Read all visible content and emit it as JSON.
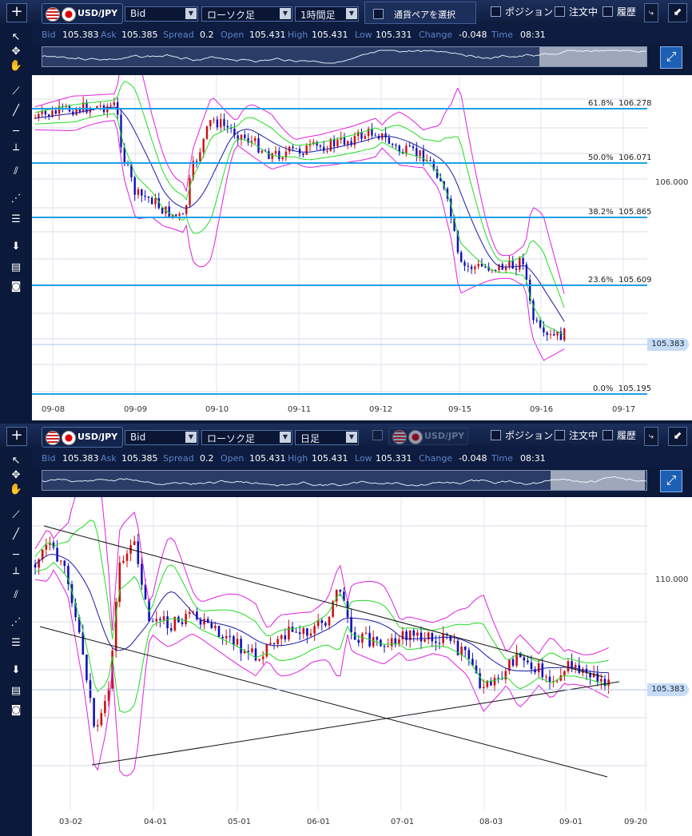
{
  "top": {
    "pair": "USD/JPY",
    "price_type": "Bid",
    "chart_type": "ローソク足",
    "timeframe": "1時間足",
    "pair_select_label": "通貨ペアを選択",
    "checks": {
      "position": "ポジション",
      "orders": "注文中",
      "history": "履歴"
    },
    "info": {
      "bid_l": "Bid",
      "bid": "105.383",
      "ask_l": "Ask",
      "ask": "105.385",
      "spread_l": "Spread",
      "spread": "0.2",
      "open_l": "Open",
      "open": "105.431",
      "high_l": "High",
      "high": "105.431",
      "low_l": "Low",
      "low": "105.331",
      "change_l": "Change",
      "change": "-0.048",
      "time_l": "Time",
      "time": "08:31"
    },
    "y_ticks": [
      "106.000"
    ],
    "current_price": "105.383",
    "fib": [
      {
        "label": "61.8%",
        "value": "106.278"
      },
      {
        "label": "50.0%",
        "value": "106.071"
      },
      {
        "label": "38.2%",
        "value": "105.865"
      },
      {
        "label": "23.6%",
        "value": "105.609"
      },
      {
        "label": "0.0%",
        "value": "105.195"
      }
    ],
    "x_ticks": [
      "09-08",
      "09-09",
      "09-10",
      "09-11",
      "09-12",
      "09-15",
      "09-16",
      "09-17"
    ]
  },
  "bottom": {
    "pair": "USD/JPY",
    "pair_disabled": "USD/JPY",
    "price_type": "Bid",
    "chart_type": "ローソク足",
    "timeframe": "日足",
    "checks": {
      "position": "ポジション",
      "orders": "注文中",
      "history": "履歴"
    },
    "info": {
      "bid_l": "Bid",
      "bid": "105.383",
      "ask_l": "Ask",
      "ask": "105.385",
      "spread_l": "Spread",
      "spread": "0.2",
      "open_l": "Open",
      "open": "105.431",
      "high_l": "High",
      "high": "105.431",
      "low_l": "Low",
      "low": "105.331",
      "change_l": "Change",
      "change": "-0.048",
      "time_l": "Time",
      "time": "08:31"
    },
    "y_ticks": [
      "110.000"
    ],
    "current_price": "105.383",
    "x_ticks": [
      "03-02",
      "04-01",
      "05-01",
      "06-01",
      "07-01",
      "08-03",
      "09-01",
      "09-20"
    ]
  },
  "icons": {
    "add": "plus-icon",
    "detach": "detach-icon",
    "shrink": "shrink-icon",
    "navigator": "zoom-navigator-icon"
  },
  "colors": {
    "bull": "#cc1111",
    "bear": "#1111bb",
    "boll_outer": "#e020e0",
    "boll_inner": "#22dd22",
    "ma": "#1a1aa8",
    "fib_line": "#1ea0e8",
    "trend": "#111111"
  }
}
